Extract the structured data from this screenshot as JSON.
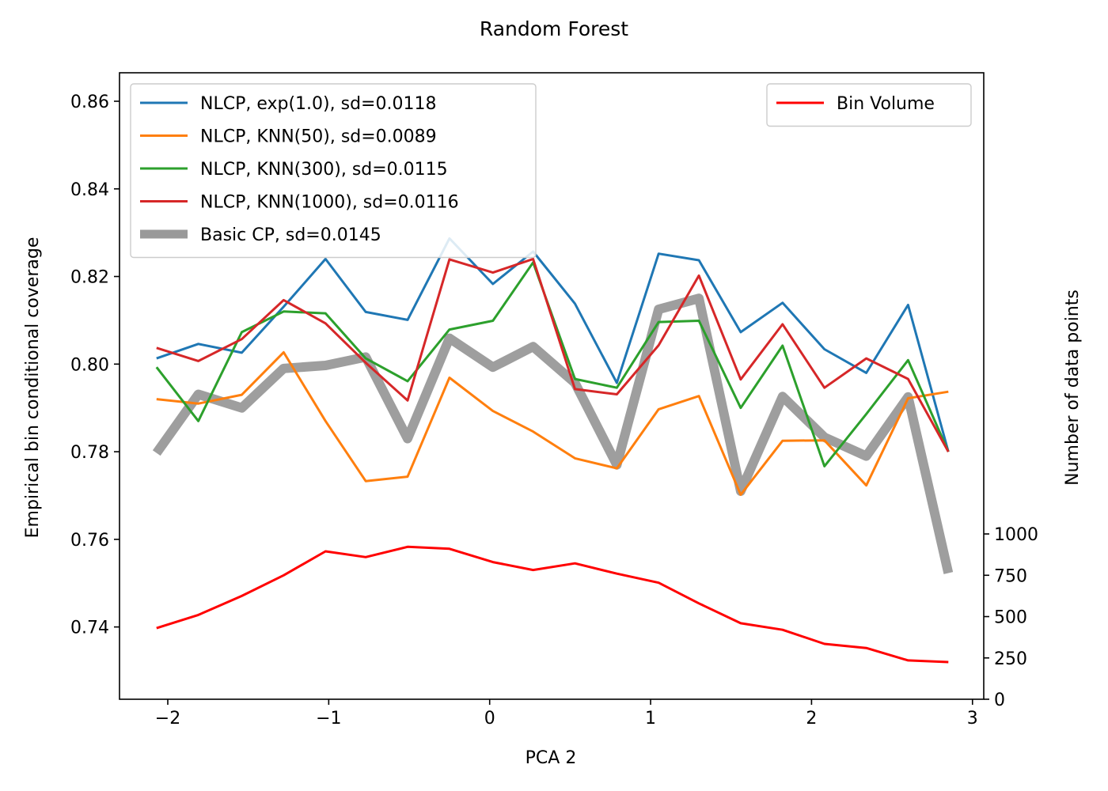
{
  "chart_data": {
    "type": "line",
    "title": "Random Forest",
    "xlabel": "PCA 2",
    "ylabel": "Empirical bin conditional coverage",
    "ylabel_right": "Number of data points",
    "xlim": [
      -2.3,
      3.07
    ],
    "ylim": [
      0.7235,
      0.8665
    ],
    "ylim_right": [
      0,
      3790
    ],
    "x_ticks": [
      -2,
      -1,
      0,
      1,
      2,
      3
    ],
    "x_tick_labels": [
      "−2",
      "−1",
      "0",
      "1",
      "2",
      "3"
    ],
    "y_ticks": [
      0.74,
      0.76,
      0.78,
      0.8,
      0.82,
      0.84,
      0.86
    ],
    "y_tick_labels": [
      "0.74",
      "0.76",
      "0.78",
      "0.80",
      "0.82",
      "0.84",
      "0.86"
    ],
    "y_right_ticks": [
      0,
      250,
      500,
      750,
      1000
    ],
    "y_right_tick_labels": [
      "0",
      "250",
      "500",
      "750",
      "1000"
    ],
    "grid": false,
    "x": [
      -2.07,
      -1.81,
      -1.54,
      -1.28,
      -1.02,
      -0.77,
      -0.51,
      -0.25,
      0.02,
      0.27,
      0.53,
      0.79,
      1.05,
      1.3,
      1.56,
      1.82,
      2.08,
      2.34,
      2.6,
      2.85
    ],
    "series": [
      {
        "name": "NLCP, exp(1.0), sd=0.0118",
        "color": "#1f77b4",
        "axis": "left",
        "width": 3,
        "values": [
          0.8013,
          0.8046,
          0.8026,
          0.8131,
          0.824,
          0.8119,
          0.8101,
          0.8287,
          0.8183,
          0.8257,
          0.8138,
          0.7957,
          0.8252,
          0.8237,
          0.8073,
          0.814,
          0.8034,
          0.798,
          0.8135,
          0.78
        ]
      },
      {
        "name": "NLCP, KNN(50), sd=0.0089",
        "color": "#ff7f0e",
        "axis": "left",
        "width": 3,
        "values": [
          0.792,
          0.791,
          0.793,
          0.8027,
          0.787,
          0.7733,
          0.7743,
          0.7969,
          0.7893,
          0.7846,
          0.7785,
          0.7762,
          0.7897,
          0.7927,
          0.7702,
          0.7825,
          0.7826,
          0.7723,
          0.7922,
          0.7937
        ]
      },
      {
        "name": "NLCP, KNN(300), sd=0.0115",
        "color": "#2ca02c",
        "axis": "left",
        "width": 3,
        "values": [
          0.7993,
          0.787,
          0.8073,
          0.812,
          0.8116,
          0.8013,
          0.7961,
          0.8079,
          0.8099,
          0.8232,
          0.7966,
          0.7946,
          0.8096,
          0.8099,
          0.79,
          0.8042,
          0.7767,
          0.7886,
          0.8009,
          0.78
        ]
      },
      {
        "name": "NLCP, KNN(1000), sd=0.0116",
        "color": "#d62728",
        "axis": "left",
        "width": 3,
        "values": [
          0.8037,
          0.8007,
          0.8057,
          0.8146,
          0.8093,
          0.8003,
          0.7917,
          0.8239,
          0.8209,
          0.824,
          0.7943,
          0.7931,
          0.8043,
          0.8202,
          0.7965,
          0.8091,
          0.7946,
          0.8013,
          0.7966,
          0.78
        ]
      },
      {
        "name": "Basic CP, sd=0.0145",
        "color": "#999999",
        "axis": "left",
        "width": 12,
        "values": [
          0.7797,
          0.7931,
          0.79,
          0.799,
          0.7997,
          0.8016,
          0.783,
          0.8059,
          0.7993,
          0.804,
          0.7957,
          0.777,
          0.8125,
          0.815,
          0.771,
          0.7926,
          0.7833,
          0.779,
          0.7925,
          0.7523
        ]
      },
      {
        "name": "Bin Volume",
        "color": "#ff0000",
        "axis": "right",
        "width": 3,
        "values": [
          430,
          510,
          625,
          750,
          895,
          860,
          922,
          910,
          830,
          782,
          822,
          760,
          705,
          580,
          460,
          420,
          335,
          310,
          235,
          225
        ]
      }
    ],
    "legend_left": {
      "placement": "upper-left",
      "entries": [
        "NLCP, exp(1.0), sd=0.0118",
        "NLCP, KNN(50), sd=0.0089",
        "NLCP, KNN(300), sd=0.0115",
        "NLCP, KNN(1000), sd=0.0116",
        "Basic CP, sd=0.0145"
      ]
    },
    "legend_right": {
      "placement": "upper-right",
      "entries": [
        "Bin Volume"
      ]
    }
  }
}
